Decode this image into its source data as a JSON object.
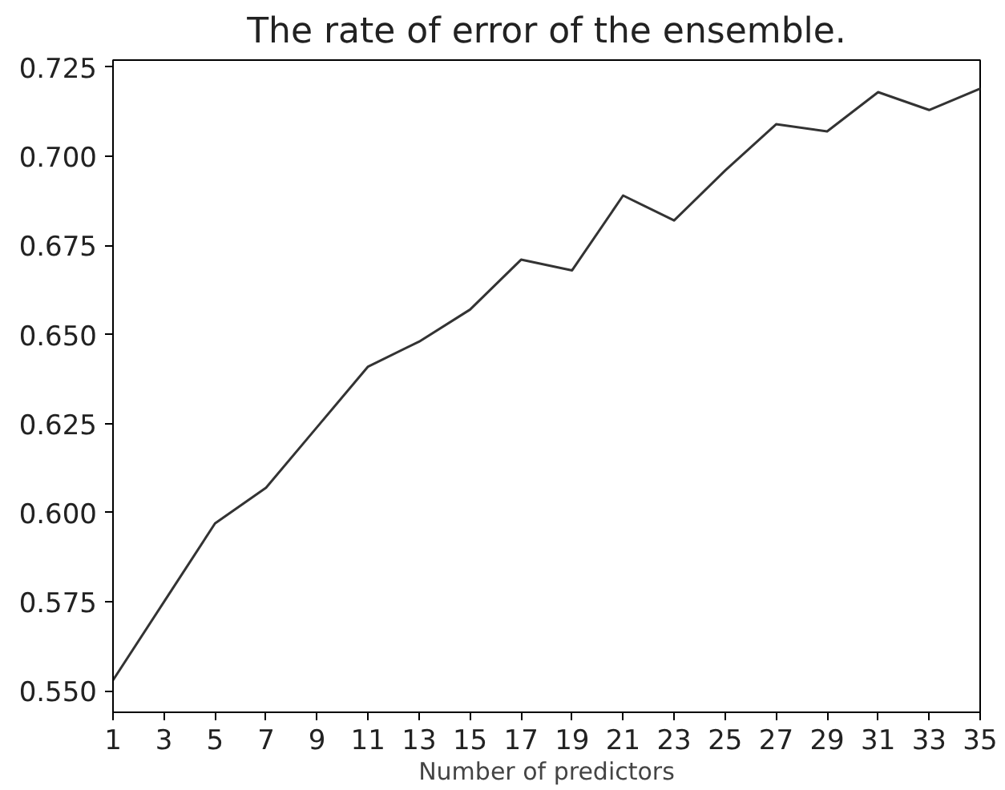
{
  "chart_data": {
    "type": "line",
    "title": "The rate of error of the ensemble.",
    "xlabel": "Number of predictors",
    "x": [
      1,
      3,
      5,
      7,
      9,
      11,
      13,
      15,
      17,
      19,
      21,
      23,
      25,
      27,
      29,
      31,
      33,
      35
    ],
    "series": [
      {
        "color": "#333333",
        "values": [
          0.553,
          0.575,
          0.597,
          0.607,
          0.624,
          0.641,
          0.648,
          0.657,
          0.671,
          0.668,
          0.689,
          0.682,
          0.696,
          0.709,
          0.707,
          0.718,
          0.713,
          0.719
        ]
      }
    ],
    "xlim": [
      1,
      35
    ],
    "ylim": [
      0.544,
      0.727
    ],
    "xticks": [
      1,
      3,
      5,
      7,
      9,
      11,
      13,
      15,
      17,
      19,
      21,
      23,
      25,
      27,
      29,
      31,
      33,
      35
    ],
    "yticks": [
      {
        "value": 0.55,
        "label": "0.550"
      },
      {
        "value": 0.575,
        "label": "0.575"
      },
      {
        "value": 0.6,
        "label": "0.600"
      },
      {
        "value": 0.625,
        "label": "0.625"
      },
      {
        "value": 0.65,
        "label": "0.650"
      },
      {
        "value": 0.675,
        "label": "0.675"
      },
      {
        "value": 0.7,
        "label": "0.700"
      },
      {
        "value": 0.725,
        "label": "0.725"
      }
    ],
    "grid": false,
    "marker": "none",
    "line_style": "solid"
  }
}
